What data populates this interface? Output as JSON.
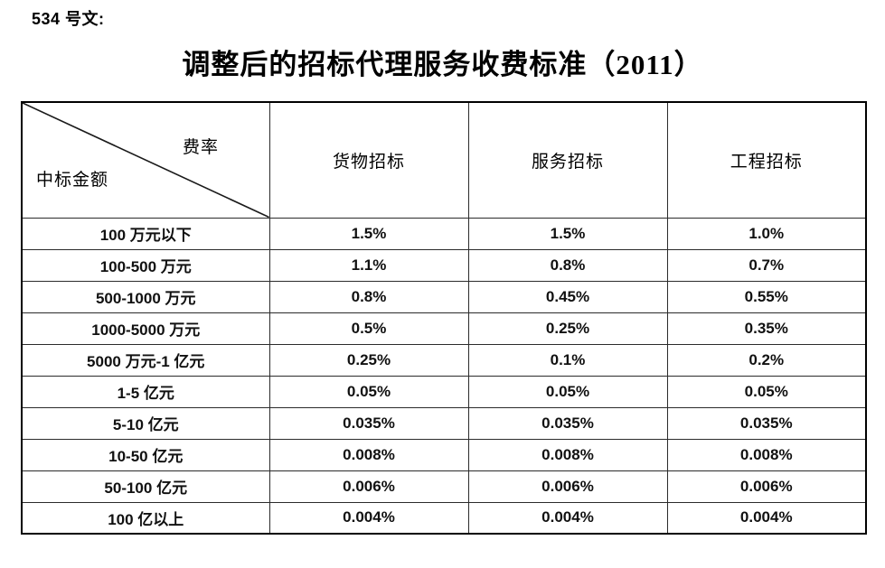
{
  "document": {
    "doc_label": "534 号文:",
    "title": "调整后的招标代理服务收费标准（2011）"
  },
  "table": {
    "corner": {
      "top_right": "费率",
      "bottom_left": "中标金额"
    },
    "columns": [
      "货物招标",
      "服务招标",
      "工程招标"
    ],
    "rows": [
      {
        "amount": "100 万元以下",
        "values": [
          "1.5%",
          "1.5%",
          "1.0%"
        ]
      },
      {
        "amount": "100-500 万元",
        "values": [
          "1.1%",
          "0.8%",
          "0.7%"
        ]
      },
      {
        "amount": "500-1000 万元",
        "values": [
          "0.8%",
          "0.45%",
          "0.55%"
        ]
      },
      {
        "amount": "1000-5000 万元",
        "values": [
          "0.5%",
          "0.25%",
          "0.35%"
        ]
      },
      {
        "amount": "5000 万元-1 亿元",
        "values": [
          "0.25%",
          "0.1%",
          "0.2%"
        ]
      },
      {
        "amount": "1-5 亿元",
        "values": [
          "0.05%",
          "0.05%",
          "0.05%"
        ]
      },
      {
        "amount": "5-10 亿元",
        "values": [
          "0.035%",
          "0.035%",
          "0.035%"
        ]
      },
      {
        "amount": "10-50 亿元",
        "values": [
          "0.008%",
          "0.008%",
          "0.008%"
        ]
      },
      {
        "amount": "50-100 亿元",
        "values": [
          "0.006%",
          "0.006%",
          "0.006%"
        ]
      },
      {
        "amount": "100 亿以上",
        "values": [
          "0.004%",
          "0.004%",
          "0.004%"
        ]
      }
    ]
  }
}
